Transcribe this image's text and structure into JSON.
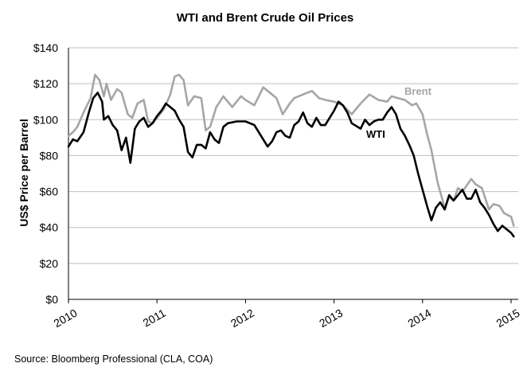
{
  "chart_data": {
    "type": "line",
    "title": "WTI and Brent Crude Oil Prices",
    "ylabel": "US$ Price per Barrel",
    "xlabel": "",
    "ylim": [
      0,
      140
    ],
    "xlim": [
      2010,
      2015.05
    ],
    "y_ticks": [
      "$0",
      "$20",
      "$40",
      "$60",
      "$80",
      "$100",
      "$120",
      "$140"
    ],
    "x_ticks": [
      "2010",
      "2011",
      "2012",
      "2013",
      "2014",
      "2015"
    ],
    "grid": "horizontal",
    "colors": {
      "Brent": "#a6a6a6",
      "WTI": "#000000",
      "grid": "#bfbfbf"
    },
    "source": "Source: Bloomberg Professional (CLA, COA)",
    "series": [
      {
        "name": "Brent",
        "x": [
          2010.0,
          2010.05,
          2010.1,
          2010.17,
          2010.25,
          2010.3,
          2010.35,
          2010.4,
          2010.43,
          2010.48,
          2010.55,
          2010.6,
          2010.67,
          2010.72,
          2010.78,
          2010.85,
          2010.9,
          2010.95,
          2011.0,
          2011.08,
          2011.15,
          2011.2,
          2011.25,
          2011.3,
          2011.35,
          2011.42,
          2011.5,
          2011.55,
          2011.6,
          2011.67,
          2011.75,
          2011.85,
          2011.95,
          2012.0,
          2012.1,
          2012.2,
          2012.3,
          2012.35,
          2012.42,
          2012.5,
          2012.55,
          2012.65,
          2012.75,
          2012.83,
          2012.9,
          2013.0,
          2013.1,
          2013.2,
          2013.3,
          2013.4,
          2013.5,
          2013.6,
          2013.65,
          2013.72,
          2013.8,
          2013.88,
          2013.93,
          2014.0,
          2014.05,
          2014.1,
          2014.17,
          2014.25,
          2014.3,
          2014.35,
          2014.4,
          2014.45,
          2014.55,
          2014.6,
          2014.67,
          2014.75,
          2014.8,
          2014.87,
          2014.92,
          2015.0,
          2015.03
        ],
        "values": [
          91,
          93,
          96,
          104,
          112,
          125,
          122,
          113,
          120,
          111,
          117,
          115,
          103,
          101,
          109,
          111,
          99,
          98,
          101,
          106,
          114,
          124,
          125,
          122,
          108,
          113,
          112,
          94,
          96,
          107,
          113,
          107,
          113,
          111,
          108,
          118,
          114,
          112,
          103,
          109,
          112,
          114,
          116,
          112,
          111,
          110,
          108,
          103,
          109,
          114,
          111,
          110,
          113,
          112,
          111,
          108,
          109,
          103,
          92,
          83,
          65,
          51,
          57,
          55,
          62,
          60,
          67,
          64,
          62,
          50,
          53,
          52,
          48,
          46,
          41
        ]
      },
      {
        "name": "WTI",
        "x": [
          2010.0,
          2010.05,
          2010.1,
          2010.17,
          2010.23,
          2010.28,
          2010.33,
          2010.38,
          2010.4,
          2010.45,
          2010.5,
          2010.55,
          2010.6,
          2010.65,
          2010.7,
          2010.75,
          2010.8,
          2010.85,
          2010.9,
          2010.95,
          2011.0,
          2011.05,
          2011.1,
          2011.15,
          2011.2,
          2011.25,
          2011.3,
          2011.35,
          2011.4,
          2011.45,
          2011.5,
          2011.55,
          2011.6,
          2011.65,
          2011.7,
          2011.75,
          2011.8,
          2011.9,
          2012.0,
          2012.1,
          2012.2,
          2012.25,
          2012.3,
          2012.35,
          2012.4,
          2012.45,
          2012.5,
          2012.55,
          2012.6,
          2012.65,
          2012.7,
          2012.75,
          2012.8,
          2012.85,
          2012.9,
          2013.0,
          2013.05,
          2013.1,
          2013.15,
          2013.2,
          2013.3,
          2013.35,
          2013.4,
          2013.45,
          2013.5,
          2013.55,
          2013.6,
          2013.65,
          2013.7,
          2013.75,
          2013.8,
          2013.85,
          2013.9,
          2013.95,
          2014.0,
          2014.05,
          2014.1,
          2014.15,
          2014.2,
          2014.25,
          2014.3,
          2014.35,
          2014.4,
          2014.45,
          2014.5,
          2014.55,
          2014.6,
          2014.65,
          2014.7,
          2014.75,
          2014.8,
          2014.85,
          2014.9,
          2014.95,
          2015.0,
          2015.03
        ],
        "values": [
          85,
          89,
          88,
          93,
          104,
          112,
          115,
          110,
          100,
          102,
          97,
          94,
          83,
          90,
          76,
          95,
          99,
          101,
          96,
          98,
          102,
          105,
          109,
          107,
          105,
          100,
          96,
          82,
          79,
          86,
          86,
          84,
          93,
          89,
          87,
          96,
          98,
          99,
          99,
          97,
          89,
          85,
          88,
          93,
          94,
          91,
          90,
          97,
          99,
          104,
          98,
          96,
          101,
          97,
          97,
          105,
          110,
          108,
          104,
          98,
          95,
          100,
          97,
          99,
          100,
          100,
          104,
          107,
          103,
          95,
          91,
          86,
          80,
          70,
          61,
          52,
          44,
          51,
          54,
          50,
          58,
          55,
          58,
          61,
          56,
          56,
          61,
          54,
          51,
          47,
          42,
          38,
          41,
          39,
          37,
          35
        ]
      }
    ]
  }
}
